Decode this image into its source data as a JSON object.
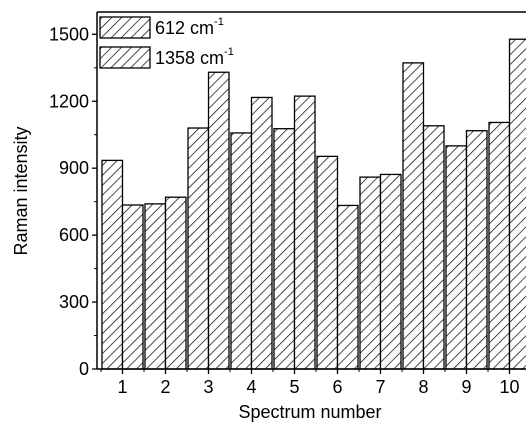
{
  "chart_data": {
    "type": "bar",
    "xlabel": "Spectrum number",
    "ylabel": "Raman intensity",
    "ylim": [
      0,
      1600
    ],
    "yticks": [
      0,
      300,
      600,
      900,
      1200,
      1500
    ],
    "categories": [
      "1",
      "2",
      "3",
      "4",
      "5",
      "6",
      "7",
      "8",
      "9",
      "10"
    ],
    "grid": false,
    "legend": "top-left",
    "series": [
      {
        "name": "612 cm",
        "name_sup": "-1",
        "values": [
          935,
          740,
          1080,
          1058,
          1077,
          953,
          860,
          1372,
          1000,
          1105
        ]
      },
      {
        "name": "1358 cm",
        "name_sup": "-1",
        "values": [
          735,
          770,
          1330,
          1217,
          1223,
          733,
          872,
          1090,
          1068,
          1478
        ]
      }
    ],
    "colors": {
      "bar_fill": "#ffffff",
      "hatch": "#000000",
      "axis": "#000000"
    }
  }
}
